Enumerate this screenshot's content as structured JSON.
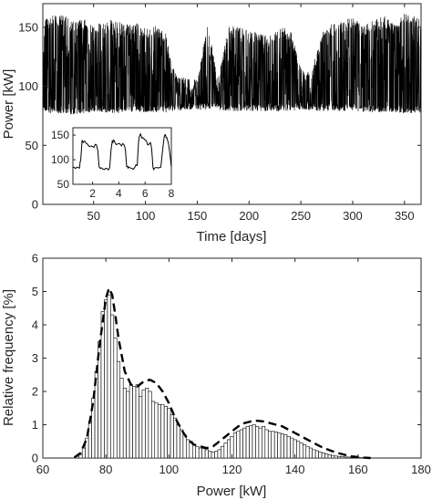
{
  "chart_data": [
    {
      "type": "line",
      "xlabel": "Time [days]",
      "ylabel": "Power [kW]",
      "xlim": [
        1,
        366
      ],
      "ylim": [
        0,
        170
      ],
      "xticks": [
        50,
        100,
        150,
        200,
        250,
        300,
        350
      ],
      "yticks": [
        0,
        50,
        100,
        150
      ],
      "grid": false,
      "color": "#000000",
      "series_envelope": {
        "x": [
          1,
          10,
          20,
          30,
          40,
          50,
          60,
          70,
          80,
          90,
          100,
          110,
          120,
          125,
          130,
          140,
          150,
          160,
          170,
          180,
          190,
          200,
          210,
          220,
          230,
          240,
          250,
          260,
          270,
          280,
          290,
          300,
          310,
          320,
          330,
          340,
          350,
          366
        ],
        "min": [
          78,
          77,
          77,
          76,
          77,
          78,
          78,
          77,
          77,
          78,
          78,
          78,
          78,
          79,
          79,
          80,
          80,
          80,
          80,
          79,
          79,
          79,
          79,
          79,
          79,
          79,
          80,
          79,
          79,
          79,
          79,
          79,
          78,
          78,
          78,
          78,
          77,
          77
        ],
        "max": [
          158,
          160,
          161,
          156,
          158,
          150,
          156,
          157,
          152,
          154,
          150,
          152,
          145,
          120,
          110,
          107,
          106,
          155,
          105,
          152,
          150,
          147,
          145,
          143,
          150,
          148,
          115,
          112,
          145,
          153,
          155,
          160,
          150,
          157,
          160,
          153,
          162,
          158
        ]
      },
      "inset": {
        "type": "line",
        "xlim": [
          0.5,
          8
        ],
        "ylim": [
          50,
          165
        ],
        "xticks": [
          2,
          4,
          6,
          8
        ],
        "yticks": [
          50,
          100,
          150
        ],
        "x": [
          0.5,
          0.7,
          0.9,
          1.0,
          1.1,
          1.2,
          1.3,
          1.4,
          1.6,
          1.9,
          2.1,
          2.3,
          2.4,
          2.5,
          2.6,
          2.7,
          2.9,
          3.1,
          3.3,
          3.4,
          3.5,
          3.6,
          3.7,
          3.9,
          4.2,
          4.4,
          4.5,
          4.6,
          4.7,
          4.8,
          5.0,
          5.2,
          5.4,
          5.5,
          5.6,
          5.7,
          5.8,
          6.0,
          6.2,
          6.4,
          6.5,
          6.6,
          6.7,
          6.8,
          7.0,
          7.2,
          7.4,
          7.5,
          7.6,
          7.7,
          7.8,
          8.0
        ],
        "y": [
          85,
          82,
          84,
          83,
          100,
          140,
          135,
          138,
          132,
          128,
          125,
          130,
          118,
          85,
          82,
          83,
          80,
          82,
          84,
          120,
          138,
          140,
          135,
          132,
          128,
          130,
          120,
          86,
          83,
          84,
          82,
          84,
          88,
          135,
          150,
          148,
          145,
          140,
          130,
          135,
          122,
          85,
          82,
          84,
          83,
          85,
          135,
          150,
          145,
          140,
          130,
          85
        ]
      }
    },
    {
      "type": "bar",
      "xlabel": "Power [kW]",
      "ylabel": "Relative frequency [%]",
      "xlim": [
        60,
        180
      ],
      "ylim": [
        0,
        6
      ],
      "xticks": [
        60,
        80,
        100,
        120,
        140,
        160,
        180
      ],
      "yticks": [
        0,
        1,
        2,
        3,
        4,
        5,
        6
      ],
      "grid": false,
      "bin_width": 1,
      "histogram": {
        "x": [
          71,
          72,
          73,
          74,
          75,
          76,
          77,
          78,
          79,
          80,
          81,
          82,
          83,
          84,
          85,
          86,
          87,
          88,
          89,
          90,
          91,
          92,
          93,
          94,
          95,
          96,
          97,
          98,
          99,
          100,
          101,
          102,
          103,
          104,
          105,
          106,
          107,
          108,
          109,
          110,
          111,
          112,
          113,
          114,
          115,
          116,
          117,
          118,
          119,
          120,
          121,
          122,
          123,
          124,
          125,
          126,
          127,
          128,
          129,
          130,
          131,
          132,
          133,
          134,
          135,
          136,
          137,
          138,
          139,
          140,
          141,
          142,
          143,
          144,
          145,
          146,
          147,
          148,
          149,
          150,
          151,
          152,
          153,
          154,
          155,
          156,
          157,
          158,
          159,
          160,
          161,
          162
        ],
        "values": [
          0.05,
          0.1,
          0.3,
          0.6,
          1.1,
          1.8,
          2.6,
          3.5,
          4.4,
          4.75,
          4.9,
          4.3,
          3.6,
          2.9,
          2.4,
          2.1,
          2.0,
          2.2,
          2.15,
          2.2,
          1.85,
          2.05,
          2.1,
          2.0,
          1.7,
          1.65,
          1.6,
          1.6,
          1.55,
          1.5,
          1.3,
          1.2,
          1.0,
          0.85,
          0.7,
          0.55,
          0.5,
          0.4,
          0.35,
          0.3,
          0.28,
          0.25,
          0.2,
          0.18,
          0.2,
          0.25,
          0.35,
          0.45,
          0.55,
          0.65,
          0.75,
          0.8,
          0.85,
          0.9,
          0.95,
          0.97,
          1.0,
          0.95,
          0.9,
          0.95,
          0.85,
          0.8,
          0.8,
          0.78,
          0.75,
          0.72,
          0.7,
          0.65,
          0.6,
          0.55,
          0.5,
          0.45,
          0.4,
          0.35,
          0.3,
          0.25,
          0.22,
          0.18,
          0.15,
          0.12,
          0.1,
          0.08,
          0.06,
          0.05,
          0.04,
          0.03,
          0.03,
          0.02,
          0.02,
          0.01,
          0.01,
          0.01
        ],
        "color": "#ffffff"
      },
      "fit": {
        "type": "line",
        "style": "dashed",
        "x": [
          70,
          72,
          74,
          76,
          78,
          80,
          81,
          82,
          83,
          84,
          86,
          88,
          90,
          92,
          94,
          96,
          98,
          100,
          102,
          104,
          106,
          108,
          110,
          112,
          114,
          116,
          118,
          120,
          122,
          124,
          126,
          128,
          130,
          132,
          134,
          136,
          138,
          140,
          142,
          144,
          146,
          148,
          150,
          152,
          154,
          156,
          158,
          160,
          162,
          164
        ],
        "y": [
          0.02,
          0.15,
          0.6,
          1.7,
          3.4,
          4.8,
          5.1,
          4.9,
          4.3,
          3.6,
          2.6,
          2.2,
          2.15,
          2.3,
          2.35,
          2.25,
          2.0,
          1.65,
          1.2,
          0.85,
          0.55,
          0.4,
          0.35,
          0.3,
          0.35,
          0.5,
          0.65,
          0.8,
          0.95,
          1.05,
          1.1,
          1.12,
          1.1,
          1.05,
          1.0,
          0.95,
          0.85,
          0.75,
          0.65,
          0.55,
          0.45,
          0.35,
          0.27,
          0.2,
          0.14,
          0.09,
          0.05,
          0.03,
          0.01,
          0.0
        ],
        "color": "#000000"
      }
    }
  ]
}
